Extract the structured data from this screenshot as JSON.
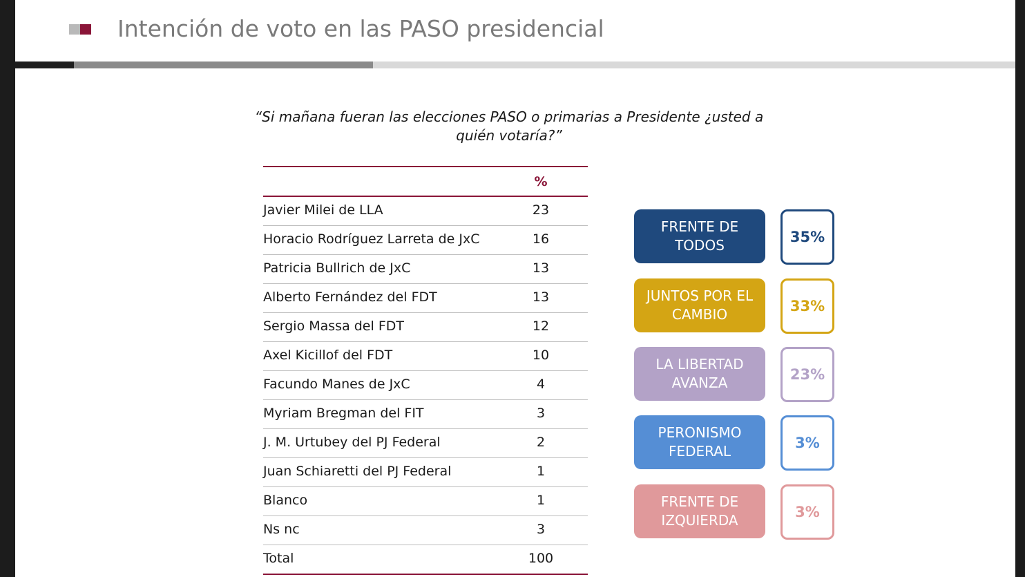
{
  "header": {
    "title": "Intención de voto en las PASO presidencial"
  },
  "question": {
    "line1": "“Si mañana fueran las elecciones PASO o primarias a Presidente ¿usted a",
    "line2": "quién votaría?”"
  },
  "table": {
    "header_value": "%",
    "rows": [
      {
        "name": "Javier Milei de LLA",
        "value": "23"
      },
      {
        "name": "Horacio Rodríguez  Larreta de JxC",
        "value": "16"
      },
      {
        "name": "Patricia Bullrich de JxC",
        "value": "13"
      },
      {
        "name": "Alberto Fernández del FDT",
        "value": "13"
      },
      {
        "name": "Sergio Massa del FDT",
        "value": "12"
      },
      {
        "name": "Axel Kicillof del FDT",
        "value": "10"
      },
      {
        "name": "Facundo Manes de JxC",
        "value": "4"
      },
      {
        "name": "Myriam Bregman del FIT",
        "value": "3"
      },
      {
        "name": "J. M. Urtubey del PJ Federal",
        "value": "2"
      },
      {
        "name": "Juan Schiaretti del PJ Federal",
        "value": "1"
      },
      {
        "name": "Blanco",
        "value": "1"
      },
      {
        "name": "Ns nc",
        "value": "3"
      },
      {
        "name": "Total",
        "value": "100"
      }
    ]
  },
  "parties": [
    {
      "line1": "FRENTE DE",
      "line2": "TODOS",
      "pct": "35%",
      "color": "#1f497d",
      "text_color": "#ffffff"
    },
    {
      "line1": "JUNTOS POR EL",
      "line2": "CAMBIO",
      "pct": "33%",
      "color": "#d4a514",
      "text_color": "#ffffff"
    },
    {
      "line1": "LA LIBERTAD",
      "line2": "AVANZA",
      "pct": "23%",
      "color": "#b3a2c7",
      "text_color": "#ffffff"
    },
    {
      "line1": "PERONISMO",
      "line2": "FEDERAL",
      "pct": "3%",
      "color": "#558ed5",
      "text_color": "#ffffff"
    },
    {
      "line1": "FRENTE DE",
      "line2": "IZQUIERDA",
      "pct": "3%",
      "color": "#e0999b",
      "text_color": "#ffffff"
    }
  ],
  "colors": {
    "accent": "#8a1538",
    "title_gray": "#7a7a7a"
  }
}
